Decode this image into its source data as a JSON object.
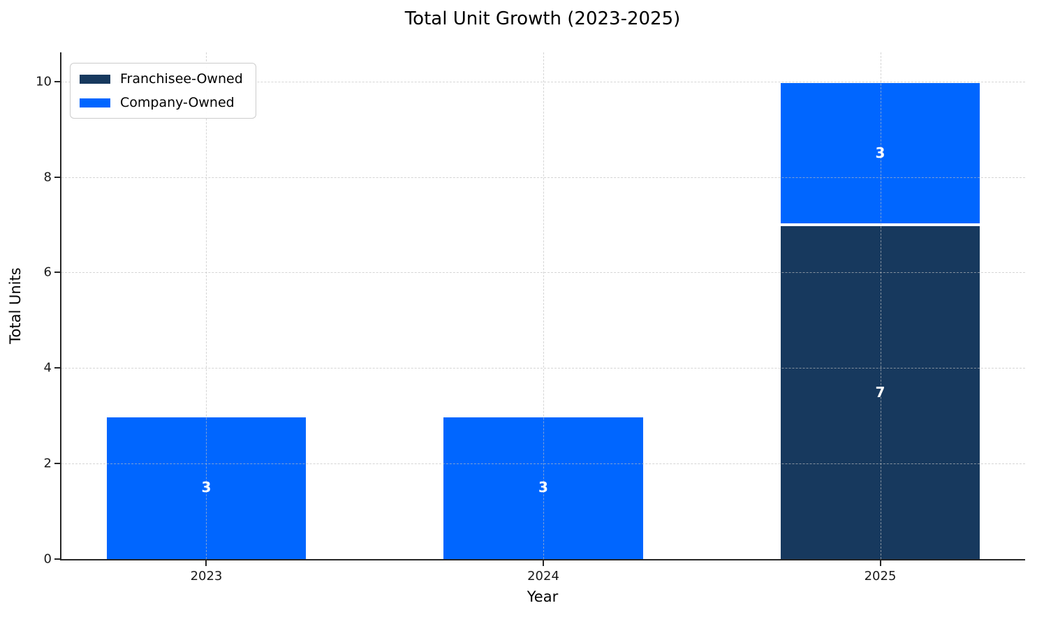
{
  "chart_data": {
    "type": "bar",
    "stacked": true,
    "title": "Total Unit Growth (2023-2025)",
    "xlabel": "Year",
    "ylabel": "Total Units",
    "categories": [
      "2023",
      "2024",
      "2025"
    ],
    "series": [
      {
        "name": "Franchisee-Owned",
        "color": "#17395E",
        "values": [
          0,
          0,
          7
        ],
        "labels": [
          "",
          "",
          "7"
        ]
      },
      {
        "name": "Company-Owned",
        "color": "#0066FF",
        "values": [
          3,
          3,
          3
        ],
        "labels": [
          "3",
          "3",
          "3"
        ]
      }
    ],
    "yticks": [
      "0",
      "2",
      "4",
      "6",
      "8",
      "10"
    ],
    "ytick_values": [
      0,
      2,
      4,
      6,
      8,
      10
    ],
    "ylim": [
      0,
      10.61
    ],
    "xlim": [
      -0.43,
      2.43
    ],
    "bar_width": 0.6,
    "grid": true,
    "grid_style": "dashed",
    "legend_position": "upper-left",
    "bar_label_color": "#ffffff",
    "bar_edge_color": "#ffffff",
    "axis_color": "#262626"
  }
}
